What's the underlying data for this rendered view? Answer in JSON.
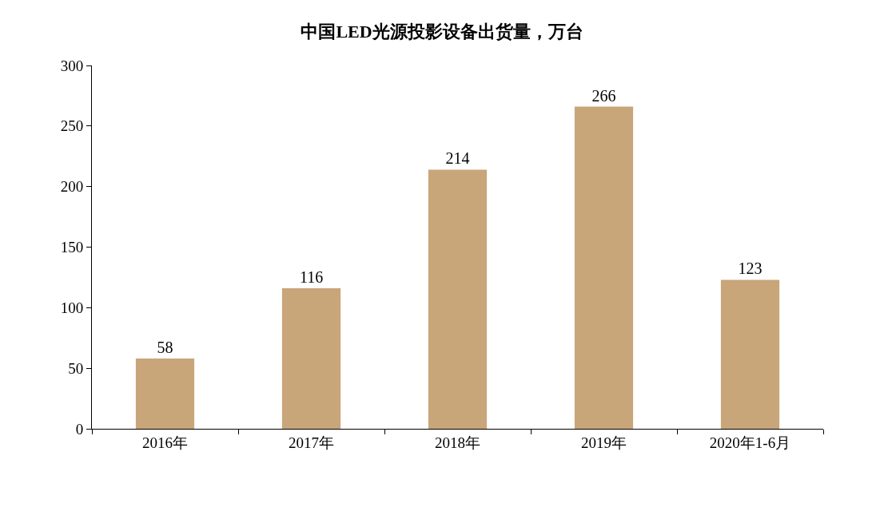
{
  "chart_data": {
    "type": "bar",
    "title": "中国LED光源投影设备出货量，万台",
    "categories": [
      "2016年",
      "2017年",
      "2018年",
      "2019年",
      "2020年1-6月"
    ],
    "values": [
      58,
      116,
      214,
      266,
      123
    ],
    "color": "#c9a57a",
    "ylim": [
      0,
      300
    ],
    "yticks": [
      0,
      50,
      100,
      150,
      200,
      250,
      300
    ],
    "grid": false,
    "data_labels": true
  }
}
